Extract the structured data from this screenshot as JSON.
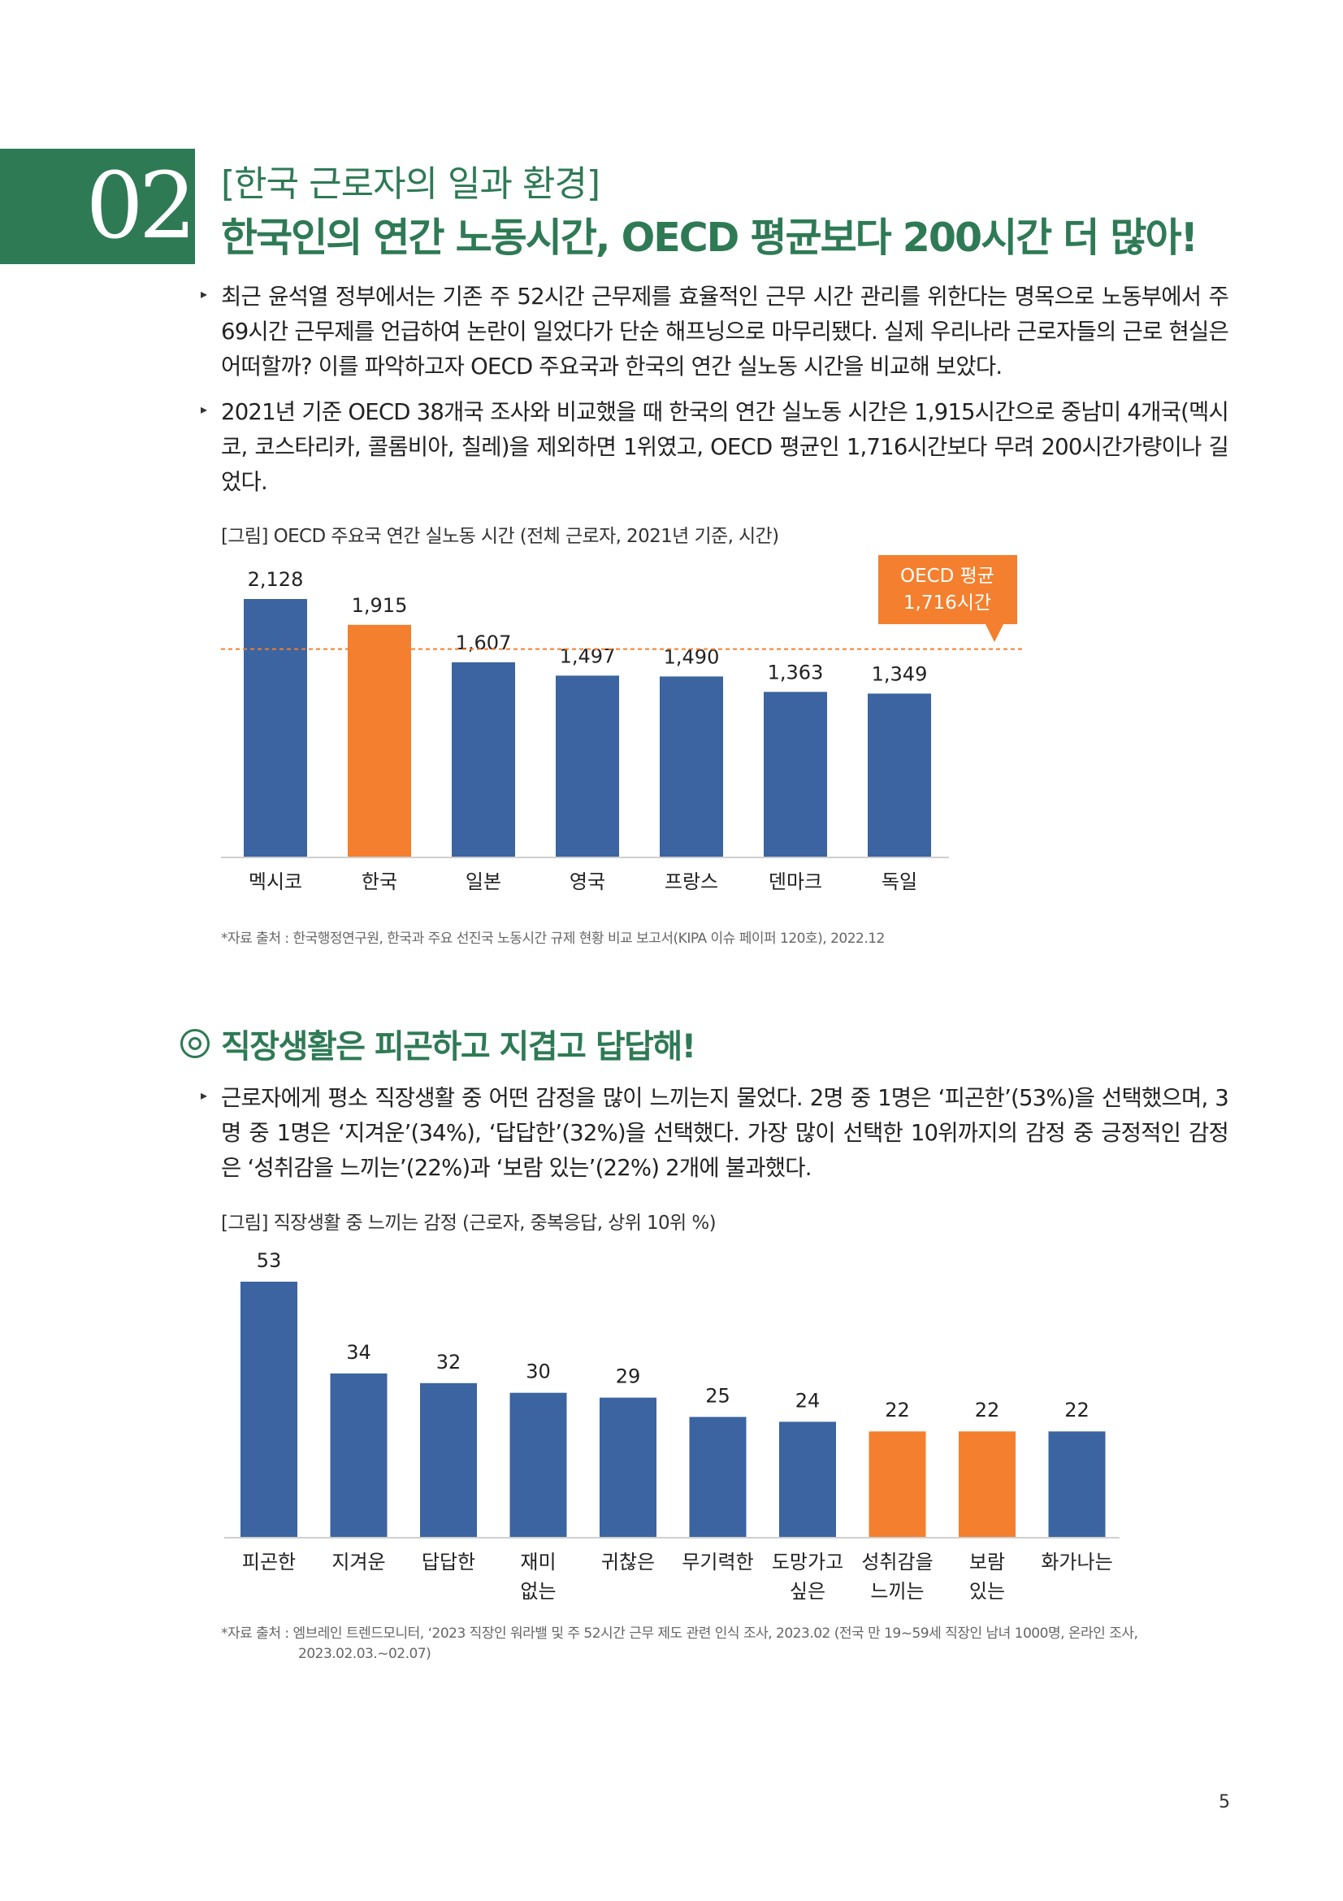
{
  "header": {
    "number": "02",
    "subtitle": "[한국 근로자의 일과 환경]",
    "title": "한국인의 연간 노동시간, OECD 평균보다 200시간 더 많아!"
  },
  "intro": {
    "para1": "최근 윤석열 정부에서는 기존 주 52시간 근무제를 효율적인 근무 시간 관리를 위한다는 명목으로 노동부에서 주 69시간 근무제를 언급하여 논란이 일었다가 단순 해프닝으로 마무리됐다. 실제 우리나라 근로자들의 근로 현실은 어떠할까? 이를 파악하고자 OECD 주요국과 한국의 연간 실노동 시간을 비교해 보았다.",
    "para2": "2021년 기준 OECD 38개국 조사와 비교했을 때 한국의 연간 실노동 시간은 1,915시간으로 중남미 4개국(멕시코, 코스타리카, 콜롬비아, 칠레)을 제외하면 1위였고, OECD 평균인 1,716시간보다 무려 200시간가량이나 길었다."
  },
  "figure1": {
    "caption": "[그림] OECD 주요국 연간 실노동 시간 (전체 근로자, 2021년 기준, 시간)",
    "source": "*자료 출처 : 한국행정연구원, 한국과 주요 선진국 노동시간 규제 현황 비교 보고서(KIPA 이슈 페이퍼 120호), 2022.12",
    "callout_line1": "OECD 평균",
    "callout_line2": "1,716시간"
  },
  "section2": {
    "title": "직장생활은 피곤하고 지겹고 답답해!",
    "para": "근로자에게  평소 직장생활 중 어떤 감정을 많이 느끼는지 물었다. 2명 중 1명은 ‘피곤한’(53%)을 선택했으며, 3명 중 1명은 ‘지겨운’(34%), ‘답답한’(32%)을 선택했다. 가장 많이 선택한 10위까지의 감정 중 긍정적인 감정은 ‘성취감을 느끼는’(22%)과 ‘보람 있는’(22%) 2개에 불과했다."
  },
  "figure2": {
    "caption": "[그림] 직장생활 중 느끼는 감정 (근로자, 중복응답, 상위 10위 %)",
    "source_line1": "*자료 출처 : 엠브레인 트렌드모니터, ‘2023 직장인 워라밸 및 주 52시간 근무 제도 관련 인식 조사, 2023.02 (전국 만 19~59세 직장인 남녀 1000명, 온라인 조사,",
    "source_line2": "2023.02.03.~02.07)"
  },
  "page_number": "5",
  "colors": {
    "green": "#2e7a55",
    "bar_blue": "#3b64a0",
    "bar_orange": "#f47f2e"
  },
  "chart_data": [
    {
      "type": "bar",
      "title": "[그림] OECD 주요국 연간 실노동 시간 (전체 근로자, 2021년 기준, 시간)",
      "categories": [
        "멕시코",
        "한국",
        "일본",
        "영국",
        "프랑스",
        "덴마크",
        "독일"
      ],
      "values": [
        2128,
        1915,
        1607,
        1497,
        1490,
        1363,
        1349
      ],
      "labels": [
        "2,128",
        "1,915",
        "1,607",
        "1,497",
        "1,490",
        "1,363",
        "1,349"
      ],
      "highlight": [
        false,
        true,
        false,
        false,
        false,
        false,
        false
      ],
      "reference_line": {
        "value": 1716,
        "label": "OECD 평균 1,716시간"
      },
      "ylim": [
        0,
        2128
      ],
      "grid": false
    },
    {
      "type": "bar",
      "title": "[그림] 직장생활 중 느끼는 감정 (근로자, 중복응답, 상위 10위 %)",
      "categories": [
        [
          "피곤한"
        ],
        [
          "지겨운"
        ],
        [
          "답답한"
        ],
        [
          "재미",
          "없는"
        ],
        [
          "귀찮은"
        ],
        [
          "무기력한"
        ],
        [
          "도망가고",
          "싶은"
        ],
        [
          "성취감을",
          "느끼는"
        ],
        [
          "보람",
          "있는"
        ],
        [
          "화가나는"
        ]
      ],
      "values": [
        53,
        34,
        32,
        30,
        29,
        25,
        24,
        22,
        22,
        22
      ],
      "highlight": [
        false,
        false,
        false,
        false,
        false,
        false,
        false,
        true,
        true,
        false
      ],
      "ylim": [
        0,
        53
      ],
      "grid": false
    }
  ]
}
